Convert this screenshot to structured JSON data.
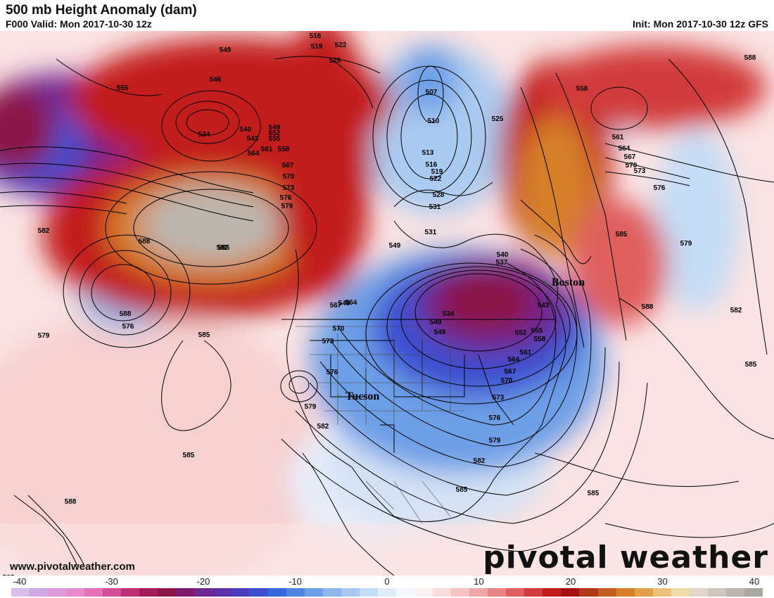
{
  "header": {
    "title": "500 mb Height Anomaly (dam)",
    "valid": "F000 Valid: Mon 2017-10-30 12z",
    "init": "Init: Mon 2017-10-30 12z GFS"
  },
  "footer": {
    "website": "www.pivotalweather.com",
    "logo": "pivotal weather"
  },
  "colorbar": {
    "ticks": [
      "-40",
      "-30",
      "-20",
      "-10",
      "0",
      "10",
      "20",
      "30",
      "40"
    ],
    "colors": [
      "#d8bde6",
      "#cfa8e4",
      "#dd99d9",
      "#e98acb",
      "#e56fb8",
      "#d24f95",
      "#bd3074",
      "#a41c58",
      "#8c1746",
      "#7e1a6f",
      "#6f2592",
      "#5d30a8",
      "#4b3dbc",
      "#3c4fd0",
      "#3767d9",
      "#4f84e0",
      "#6d9fe6",
      "#8db7ec",
      "#aacbf1",
      "#c5ddf6",
      "#dfecfa",
      "#f3f8fd",
      "#fdf0f0",
      "#f9dcdc",
      "#f5c3c3",
      "#efa6a6",
      "#e88484",
      "#df5f5f",
      "#d23b3b",
      "#c21c1c",
      "#a80f0f",
      "#b2381a",
      "#c45e1f",
      "#d57f2a",
      "#e2a04a",
      "#ecc27a",
      "#f0dcab",
      "#e3d6c8",
      "#cfc6bd",
      "#bdb6af",
      "#aaa6a2"
    ],
    "neg_dark": "#7e1a6f",
    "pos_dark": "#a80f0f"
  },
  "cities": [
    {
      "name": "Boston"
    },
    {
      "name": "Tucson"
    }
  ],
  "contour_labels": [
    "516",
    "519",
    "522",
    "525",
    "549",
    "546",
    "555",
    "534",
    "540",
    "543",
    "549",
    "552",
    "555",
    "558",
    "561",
    "564",
    "567",
    "570",
    "573",
    "576",
    "579",
    "582",
    "585",
    "588",
    "507",
    "510",
    "513",
    "516",
    "519",
    "522",
    "525",
    "528",
    "531",
    "558",
    "561",
    "564",
    "567",
    "570",
    "573",
    "576",
    "585",
    "579",
    "582",
    "531",
    "540",
    "537",
    "543",
    "549",
    "552",
    "555",
    "558",
    "561",
    "564",
    "567",
    "570",
    "573",
    "576",
    "579",
    "582",
    "585",
    "534",
    "540",
    "549",
    "546",
    "564",
    "567",
    "570",
    "573",
    "576",
    "579",
    "582",
    "585",
    "588",
    "576",
    "579",
    "582",
    "585",
    "588",
    "585",
    "588",
    "585",
    "588",
    "585"
  ]
}
